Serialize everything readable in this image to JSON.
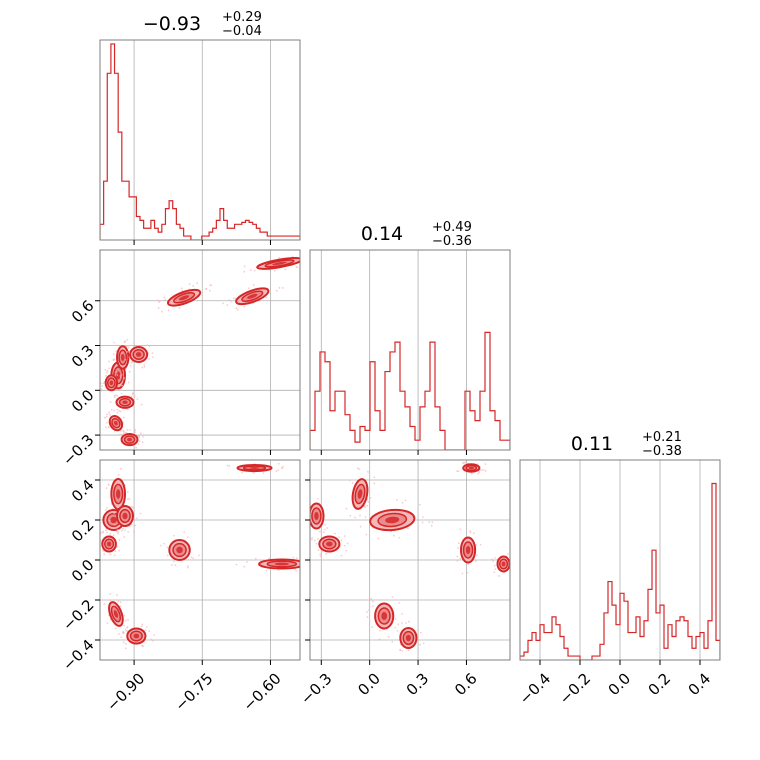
{
  "colors": {
    "series": "#d62728",
    "fill_light": "#f3b9ba",
    "fill_mid": "#ea8c8e",
    "grid": "#b0b0b0",
    "frame": "#7f7f7f"
  },
  "chart_data": [
    {
      "type": "histogram",
      "panel": "p0_diag",
      "title": {
        "main": "−0.93",
        "upper": "+0.29",
        "lower": "−0.04"
      },
      "xlim": [
        -0.975,
        -0.535
      ],
      "ylim": [
        0,
        1.02
      ],
      "xticks": [
        -0.9,
        -0.75,
        -0.6
      ],
      "xtick_labels": [],
      "yticks": [],
      "bin_edges_start": -0.975,
      "bin_width": 0.008,
      "values": [
        0.08,
        0.3,
        0.85,
        1.0,
        0.85,
        0.55,
        0.3,
        0.3,
        0.22,
        0.22,
        0.12,
        0.1,
        0.06,
        0.06,
        0.1,
        0.06,
        0.04,
        0.08,
        0.16,
        0.2,
        0.16,
        0.08,
        0.06,
        0.02,
        0.02,
        0.0,
        0.0,
        0.0,
        0.02,
        0.02,
        0.04,
        0.06,
        0.1,
        0.16,
        0.1,
        0.06,
        0.06,
        0.08,
        0.08,
        0.09,
        0.1,
        0.09,
        0.08,
        0.06,
        0.04,
        0.04,
        0.02,
        0.02,
        0.02,
        0.02,
        0.02,
        0.02,
        0.02,
        0.02,
        0.02
      ]
    },
    {
      "type": "histogram",
      "panel": "p1_diag",
      "title": {
        "main": "0.14",
        "upper": "+0.49",
        "lower": "−0.36"
      },
      "xlim": [
        -0.37,
        0.87
      ],
      "ylim": [
        0,
        1.02
      ],
      "xticks": [
        -0.3,
        0.0,
        0.3,
        0.6
      ],
      "xtick_labels": [],
      "yticks": [],
      "bin_edges_start": -0.37,
      "bin_width": 0.031,
      "values": [
        0.1,
        0.3,
        0.5,
        0.45,
        0.2,
        0.3,
        0.3,
        0.18,
        0.1,
        0.04,
        0.12,
        0.1,
        0.45,
        0.2,
        0.1,
        0.4,
        0.5,
        0.55,
        0.3,
        0.22,
        0.12,
        0.05,
        0.22,
        0.3,
        0.55,
        0.22,
        0.1,
        0.0,
        0.0,
        0.0,
        0.0,
        0.3,
        0.2,
        0.15,
        0.3,
        0.6,
        0.2,
        0.15,
        0.05,
        0.05
      ]
    },
    {
      "type": "histogram",
      "panel": "p2_diag",
      "title": {
        "main": "0.11",
        "upper": "+0.21",
        "lower": "−0.38"
      },
      "xlim": [
        -0.5,
        0.5
      ],
      "ylim": [
        0,
        1.02
      ],
      "xticks": [
        -0.4,
        -0.2,
        0.0,
        0.2,
        0.4
      ],
      "xtick_labels": [
        "−0.4",
        "−0.2",
        "0.0",
        "0.2",
        "0.4"
      ],
      "yticks": [],
      "bin_edges_start": -0.5,
      "bin_width": 0.02,
      "values": [
        0.02,
        0.04,
        0.1,
        0.14,
        0.1,
        0.18,
        0.14,
        0.14,
        0.22,
        0.18,
        0.12,
        0.06,
        0.02,
        0.02,
        0.02,
        0.0,
        0.0,
        0.0,
        0.02,
        0.02,
        0.08,
        0.24,
        0.4,
        0.28,
        0.18,
        0.34,
        0.3,
        0.14,
        0.14,
        0.22,
        0.12,
        0.2,
        0.36,
        0.56,
        0.24,
        0.28,
        0.06,
        0.18,
        0.12,
        0.2,
        0.22,
        0.2,
        0.12,
        0.06,
        0.12,
        0.14,
        0.06,
        0.2,
        0.9,
        0.1
      ]
    },
    {
      "type": "contour",
      "panel": "p10",
      "xlim": [
        -0.975,
        -0.535
      ],
      "ylim": [
        -0.4,
        0.94
      ],
      "xticks": [
        -0.9,
        -0.75,
        -0.6
      ],
      "xtick_labels": [],
      "yticks": [
        0.6,
        0.3,
        0.0,
        -0.3
      ],
      "ytick_labels": [
        "0.6",
        "0.3",
        "0.0",
        "−0.3"
      ],
      "blobs": [
        {
          "x": -0.935,
          "y": 0.1,
          "rx": 0.012,
          "ry": 0.07,
          "rot": 0
        },
        {
          "x": -0.925,
          "y": 0.22,
          "rx": 0.01,
          "ry": 0.06,
          "rot": 0
        },
        {
          "x": -0.95,
          "y": 0.05,
          "rx": 0.01,
          "ry": 0.04,
          "rot": 0
        },
        {
          "x": -0.89,
          "y": 0.24,
          "rx": 0.015,
          "ry": 0.04,
          "rot": 0
        },
        {
          "x": -0.92,
          "y": -0.08,
          "rx": 0.015,
          "ry": 0.03,
          "rot": 0
        },
        {
          "x": -0.94,
          "y": -0.22,
          "rx": 0.01,
          "ry": 0.04,
          "rot": -30
        },
        {
          "x": -0.91,
          "y": -0.33,
          "rx": 0.014,
          "ry": 0.03,
          "rot": 0
        },
        {
          "x": -0.79,
          "y": 0.62,
          "rx": 0.03,
          "ry": 0.03,
          "rot": -20
        },
        {
          "x": -0.64,
          "y": 0.63,
          "rx": 0.03,
          "ry": 0.03,
          "rot": -20
        },
        {
          "x": -0.58,
          "y": 0.85,
          "rx": 0.04,
          "ry": 0.02,
          "rot": -10
        }
      ]
    },
    {
      "type": "contour",
      "panel": "p20",
      "xlim": [
        -0.975,
        -0.535
      ],
      "ylim": [
        -0.5,
        0.5
      ],
      "xticks": [
        -0.9,
        -0.75,
        -0.6
      ],
      "xtick_labels": [
        "−0.90",
        "−0.75",
        "−0.60"
      ],
      "yticks": [
        0.4,
        0.2,
        0.0,
        -0.2,
        -0.4
      ],
      "ytick_labels": [
        "0.4",
        "0.2",
        "0.0",
        "−0.2",
        "−0.4"
      ],
      "blobs": [
        {
          "x": -0.935,
          "y": 0.33,
          "rx": 0.012,
          "ry": 0.06,
          "rot": 0
        },
        {
          "x": -0.945,
          "y": 0.2,
          "rx": 0.018,
          "ry": 0.04,
          "rot": 0
        },
        {
          "x": -0.92,
          "y": 0.22,
          "rx": 0.014,
          "ry": 0.04,
          "rot": 0
        },
        {
          "x": -0.955,
          "y": 0.08,
          "rx": 0.012,
          "ry": 0.03,
          "rot": 0
        },
        {
          "x": -0.94,
          "y": -0.27,
          "rx": 0.01,
          "ry": 0.05,
          "rot": -20
        },
        {
          "x": -0.895,
          "y": -0.38,
          "rx": 0.016,
          "ry": 0.03,
          "rot": 0
        },
        {
          "x": -0.8,
          "y": 0.05,
          "rx": 0.018,
          "ry": 0.04,
          "rot": 0
        },
        {
          "x": -0.635,
          "y": 0.46,
          "rx": 0.03,
          "ry": 0.012,
          "rot": 0
        },
        {
          "x": -0.575,
          "y": -0.02,
          "rx": 0.04,
          "ry": 0.018,
          "rot": 0
        }
      ]
    },
    {
      "type": "contour",
      "panel": "p21",
      "xlim": [
        -0.37,
        0.87
      ],
      "ylim": [
        -0.5,
        0.5
      ],
      "xticks": [
        -0.3,
        0.0,
        0.3,
        0.6
      ],
      "xtick_labels": [
        "−0.3",
        "0.0",
        "0.3",
        "0.6"
      ],
      "yticks": [
        0.4,
        0.2,
        0.0,
        -0.2,
        -0.4
      ],
      "ytick_labels": [],
      "blobs": [
        {
          "x": -0.33,
          "y": 0.22,
          "rx": 0.035,
          "ry": 0.05,
          "rot": 0
        },
        {
          "x": -0.25,
          "y": 0.08,
          "rx": 0.05,
          "ry": 0.03,
          "rot": 0
        },
        {
          "x": -0.06,
          "y": 0.33,
          "rx": 0.035,
          "ry": 0.06,
          "rot": 10
        },
        {
          "x": 0.14,
          "y": 0.2,
          "rx": 0.11,
          "ry": 0.04,
          "rot": -5
        },
        {
          "x": 0.09,
          "y": -0.28,
          "rx": 0.045,
          "ry": 0.05,
          "rot": 0
        },
        {
          "x": 0.24,
          "y": -0.39,
          "rx": 0.04,
          "ry": 0.04,
          "rot": 0
        },
        {
          "x": 0.61,
          "y": 0.05,
          "rx": 0.035,
          "ry": 0.05,
          "rot": 0
        },
        {
          "x": 0.63,
          "y": 0.46,
          "rx": 0.04,
          "ry": 0.015,
          "rot": 0
        },
        {
          "x": 0.83,
          "y": -0.02,
          "rx": 0.03,
          "ry": 0.03,
          "rot": 0
        }
      ]
    }
  ]
}
